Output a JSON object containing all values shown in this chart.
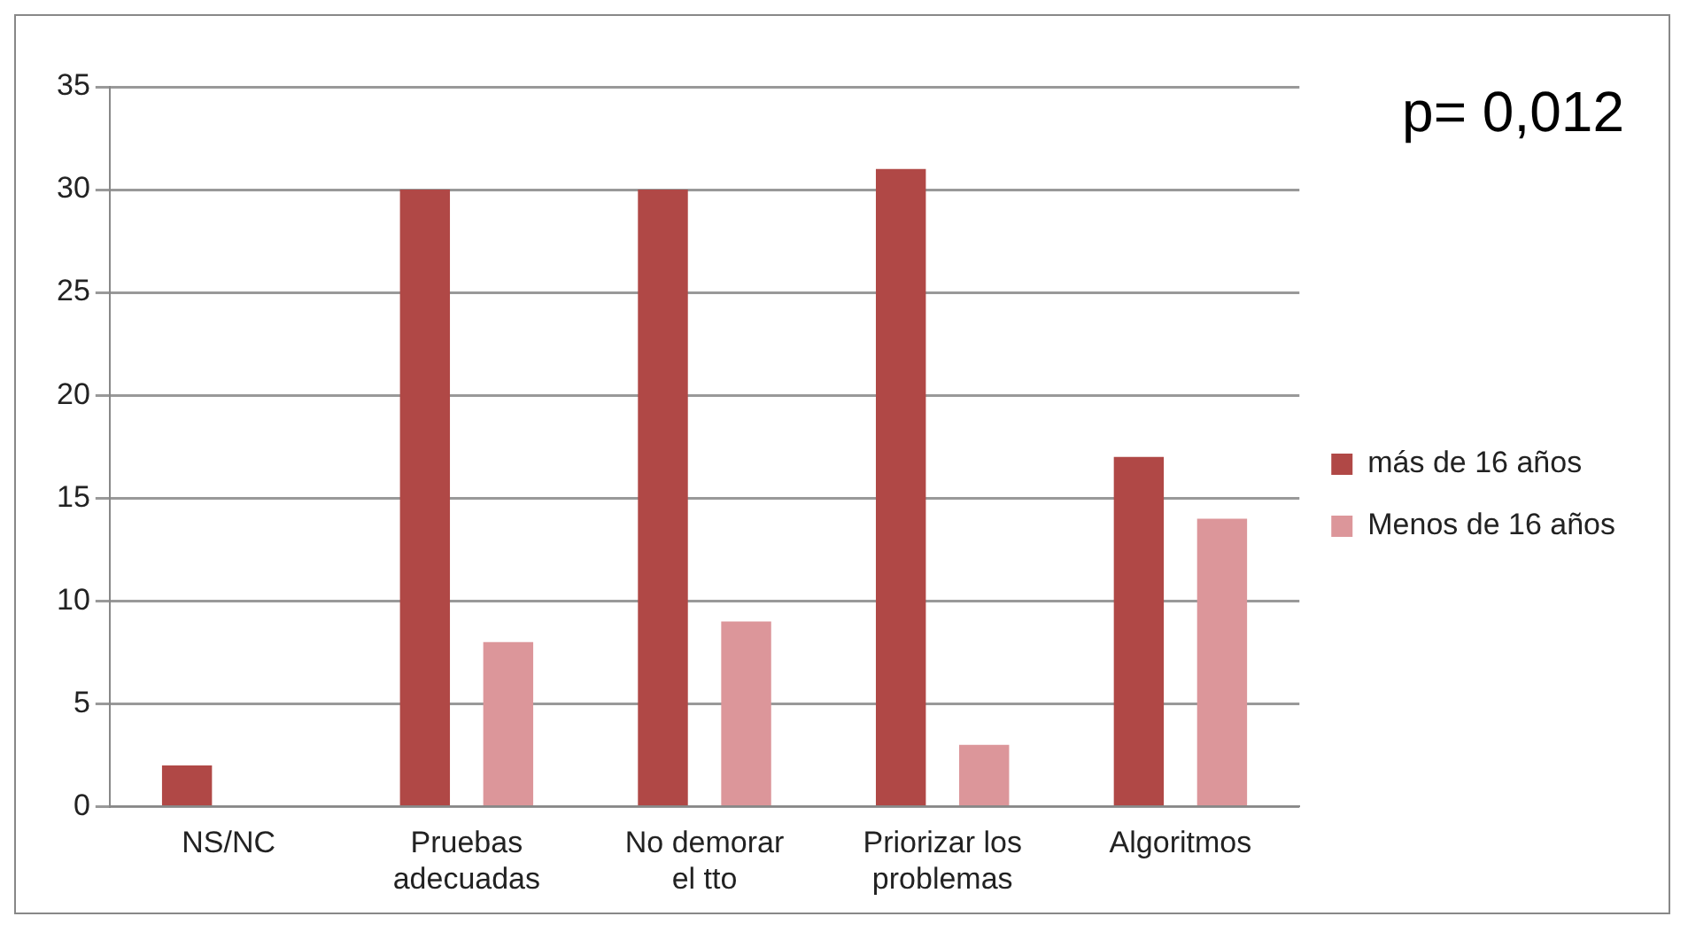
{
  "chart_data": {
    "type": "bar",
    "categories": [
      "NS/NC",
      "Pruebas\nadecuadas",
      "No demorar\nel tto",
      "Priorizar los\nproblemas",
      "Algoritmos"
    ],
    "series": [
      {
        "name": "más de 16 años",
        "color": "#b04846",
        "values": [
          2,
          30,
          30,
          31,
          17
        ]
      },
      {
        "name": "Menos de 16 años",
        "color": "#dc969a",
        "values": [
          0,
          8,
          9,
          3,
          14
        ]
      }
    ],
    "ylim": [
      0,
      35
    ],
    "yticks": [
      0,
      5,
      10,
      15,
      20,
      25,
      30,
      35
    ],
    "grid": "y",
    "legend": "right",
    "annotations": [
      "p= 0,012"
    ]
  }
}
